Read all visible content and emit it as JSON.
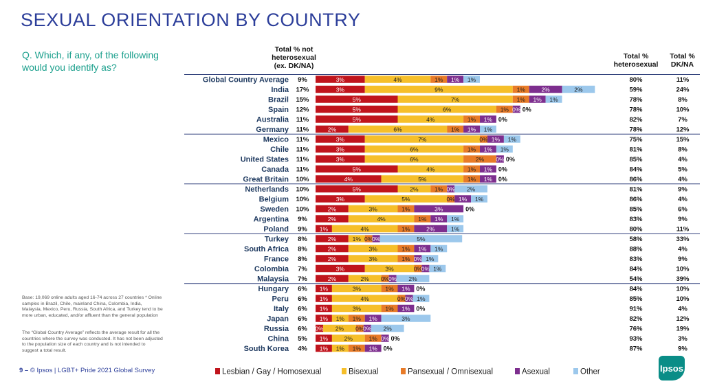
{
  "page": {
    "title": "SEXUAL ORIENTATION BY COUNTRY",
    "question": "Q. Which, if any, of the following would you identify as?",
    "col_headers": {
      "total_not_hetero": "Total % not heterosexual (ex. DK/NA)",
      "total_hetero": "Total % heterosexual",
      "total_dk": "Total % DK/NA"
    },
    "footnote1": "Base: 19,069 online adults aged 16-74 across 27 countries * Online samples in Brazil, Chile, mainland China, Colombia, India, Malaysia, Mexico, Peru, Russia, South Africa, and Turkey tend to be more urban, educated, and/or affluent than the general population",
    "footnote2": "The “Global Country Average” reflects the average result for all the countries where the survey was conducted. It has not been adjusted to the population size of each country and is not intended to suggest a total result.",
    "footer_page": "9 –",
    "footer_text": "© Ipsos | LGBT+ Pride 2021 Global Survey",
    "logo": "Ipsos"
  },
  "chart_data": {
    "type": "bar",
    "stacked": true,
    "orientation": "horizontal",
    "colors": {
      "Lesbian / Gay / Homosexual": "#c0141c",
      "Bisexual": "#f6bf2a",
      "Pansexual / Omnisexual": "#e87b28",
      "Asexual": "#7d2e8e",
      "Other": "#9cc8ec"
    },
    "legend": [
      "Lesbian / Gay / Homosexual",
      "Bisexual",
      "Pansexual / Omnisexual",
      "Asexual",
      "Other"
    ],
    "legend_position": "bottom",
    "group_breaks_after": [
      "Germany",
      "Great Britain",
      "Poland",
      "Malaysia"
    ],
    "rows": [
      {
        "country": "Global Country Average",
        "not_hetero": "9%",
        "segments": [
          3,
          4,
          1,
          1,
          1
        ],
        "labels": [
          "3%",
          "4%",
          "1%",
          "1%",
          "1%"
        ],
        "hetero": "80%",
        "dk": "11%"
      },
      {
        "country": "India",
        "not_hetero": "17%",
        "segments": [
          3,
          9,
          1,
          2,
          2
        ],
        "labels": [
          "3%",
          "9%",
          "1%",
          "2%",
          "2%"
        ],
        "hetero": "59%",
        "dk": "24%"
      },
      {
        "country": "Brazil",
        "not_hetero": "15%",
        "segments": [
          5,
          7,
          1,
          1,
          1
        ],
        "labels": [
          "5%",
          "7%",
          "1%",
          "1%",
          "1%"
        ],
        "hetero": "78%",
        "dk": "8%"
      },
      {
        "country": "Spain",
        "not_hetero": "12%",
        "segments": [
          5,
          6,
          1,
          0,
          0
        ],
        "labels": [
          "5%",
          "6%",
          "1%",
          "0%",
          "0%"
        ],
        "hetero": "78%",
        "dk": "10%"
      },
      {
        "country": "Australia",
        "not_hetero": "11%",
        "segments": [
          5,
          4,
          1,
          1,
          0
        ],
        "labels": [
          "5%",
          "4%",
          "1%",
          "1%",
          "0%"
        ],
        "hetero": "82%",
        "dk": "7%"
      },
      {
        "country": "Germany",
        "not_hetero": "11%",
        "segments": [
          2,
          6,
          1,
          1,
          1
        ],
        "labels": [
          "2%",
          "6%",
          "1%",
          "1%",
          "1%"
        ],
        "hetero": "78%",
        "dk": "12%"
      },
      {
        "country": "Mexico",
        "not_hetero": "11%",
        "segments": [
          3,
          7,
          0,
          1,
          1
        ],
        "labels": [
          "3%",
          "7%",
          "0%",
          "1%",
          "1%"
        ],
        "hetero": "75%",
        "dk": "15%"
      },
      {
        "country": "Chile",
        "not_hetero": "11%",
        "segments": [
          3,
          6,
          1,
          1,
          1
        ],
        "labels": [
          "3%",
          "6%",
          "1%",
          "1%",
          "1%"
        ],
        "hetero": "81%",
        "dk": "8%"
      },
      {
        "country": "United States",
        "not_hetero": "11%",
        "segments": [
          3,
          6,
          2,
          0,
          0
        ],
        "labels": [
          "3%",
          "6%",
          "2%",
          "0%",
          "0%"
        ],
        "hetero": "85%",
        "dk": "4%"
      },
      {
        "country": "Canada",
        "not_hetero": "11%",
        "segments": [
          5,
          4,
          1,
          1,
          0
        ],
        "labels": [
          "5%",
          "4%",
          "1%",
          "1%",
          "0%"
        ],
        "hetero": "84%",
        "dk": "5%"
      },
      {
        "country": "Great Britain",
        "not_hetero": "10%",
        "segments": [
          4,
          5,
          1,
          1,
          0
        ],
        "labels": [
          "4%",
          "5%",
          "1%",
          "1%",
          "0%"
        ],
        "hetero": "86%",
        "dk": "4%"
      },
      {
        "country": "Netherlands",
        "not_hetero": "10%",
        "segments": [
          5,
          2,
          1,
          0,
          2
        ],
        "labels": [
          "5%",
          "2%",
          "1%",
          "0%",
          "2%"
        ],
        "hetero": "81%",
        "dk": "9%"
      },
      {
        "country": "Belgium",
        "not_hetero": "10%",
        "segments": [
          3,
          5,
          0,
          1,
          1
        ],
        "labels": [
          "3%",
          "5%",
          "0%",
          "1%",
          "1%"
        ],
        "hetero": "86%",
        "dk": "4%"
      },
      {
        "country": "Sweden",
        "not_hetero": "10%",
        "segments": [
          2,
          3,
          1,
          3,
          0
        ],
        "labels": [
          "2%",
          "3%",
          "1%",
          "3%",
          "0%"
        ],
        "hetero": "85%",
        "dk": "6%"
      },
      {
        "country": "Argentina",
        "not_hetero": "9%",
        "segments": [
          2,
          4,
          1,
          1,
          1
        ],
        "labels": [
          "2%",
          "4%",
          "1%",
          "1%",
          "1%"
        ],
        "hetero": "83%",
        "dk": "9%"
      },
      {
        "country": "Poland",
        "not_hetero": "9%",
        "segments": [
          1,
          4,
          1,
          2,
          1
        ],
        "labels": [
          "1%",
          "4%",
          "1%",
          "2%",
          "1%"
        ],
        "hetero": "80%",
        "dk": "11%"
      },
      {
        "country": "Turkey",
        "not_hetero": "8%",
        "segments": [
          2,
          1,
          0,
          0,
          5
        ],
        "labels": [
          "2%",
          "1%",
          "0%",
          "0%",
          "5%"
        ],
        "hetero": "58%",
        "dk": "33%"
      },
      {
        "country": "South Africa",
        "not_hetero": "8%",
        "segments": [
          2,
          3,
          1,
          1,
          1
        ],
        "labels": [
          "2%",
          "3%",
          "1%",
          "1%",
          "1%"
        ],
        "hetero": "88%",
        "dk": "4%"
      },
      {
        "country": "France",
        "not_hetero": "8%",
        "segments": [
          2,
          3,
          1,
          0,
          1
        ],
        "labels": [
          "2%",
          "3%",
          "1%",
          "0%",
          "1%"
        ],
        "hetero": "83%",
        "dk": "9%"
      },
      {
        "country": "Colombia",
        "not_hetero": "7%",
        "segments": [
          3,
          3,
          0,
          0,
          1
        ],
        "labels": [
          "3%",
          "3%",
          "0%",
          "0%",
          "1%"
        ],
        "hetero": "84%",
        "dk": "10%"
      },
      {
        "country": "Malaysia",
        "not_hetero": "7%",
        "segments": [
          2,
          2,
          0,
          0,
          2
        ],
        "labels": [
          "2%",
          "2%",
          "0%",
          "0%",
          "2%"
        ],
        "hetero": "54%",
        "dk": "39%"
      },
      {
        "country": "Hungary",
        "not_hetero": "6%",
        "segments": [
          1,
          3,
          1,
          1,
          0
        ],
        "labels": [
          "1%",
          "3%",
          "1%",
          "1%",
          "0%"
        ],
        "hetero": "84%",
        "dk": "10%"
      },
      {
        "country": "Peru",
        "not_hetero": "6%",
        "segments": [
          1,
          4,
          0,
          0,
          1
        ],
        "labels": [
          "1%",
          "4%",
          "0%",
          "0%",
          "1%"
        ],
        "hetero": "85%",
        "dk": "10%"
      },
      {
        "country": "Italy",
        "not_hetero": "6%",
        "segments": [
          1,
          3,
          1,
          1,
          0
        ],
        "labels": [
          "1%",
          "3%",
          "1%",
          "1%",
          "0%"
        ],
        "hetero": "91%",
        "dk": "4%"
      },
      {
        "country": "Japan",
        "not_hetero": "6%",
        "segments": [
          1,
          1,
          1,
          1,
          3
        ],
        "labels": [
          "1%",
          "1%",
          "1%",
          "1%",
          "3%"
        ],
        "hetero": "82%",
        "dk": "12%"
      },
      {
        "country": "Russia",
        "not_hetero": "6%",
        "segments": [
          0,
          2,
          0,
          0,
          2
        ],
        "labels": [
          "0%",
          "2%",
          "0%",
          "0%",
          "2%"
        ],
        "hetero": "76%",
        "dk": "19%"
      },
      {
        "country": "China",
        "not_hetero": "5%",
        "segments": [
          1,
          2,
          1,
          0,
          0
        ],
        "labels": [
          "1%",
          "2%",
          "1%",
          "0%",
          "0%"
        ],
        "hetero": "93%",
        "dk": "3%"
      },
      {
        "country": "South Korea",
        "not_hetero": "4%",
        "segments": [
          1,
          1,
          1,
          1,
          0
        ],
        "labels": [
          "1%",
          "1%",
          "1%",
          "1%",
          "0%"
        ],
        "hetero": "87%",
        "dk": "9%"
      }
    ]
  }
}
